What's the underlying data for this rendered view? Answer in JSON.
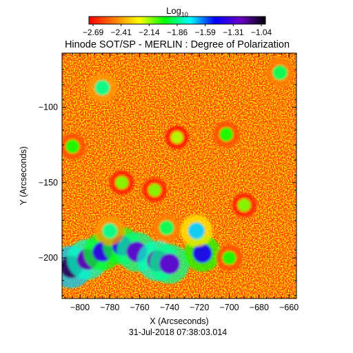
{
  "chart_data": {
    "type": "heatmap",
    "title": "Hinode SOT/SP - MERLIN : Degree of Polarization",
    "colorbar": {
      "label_base": "Log",
      "label_sub": "10",
      "ticks": [
        "-2.69",
        "-2.41",
        "-2.14",
        "-1.86",
        "-1.59",
        "-1.31",
        "-1.04"
      ],
      "range": [
        -2.69,
        -1.04
      ],
      "colormap": [
        "#ff0000",
        "#ff7a00",
        "#ffff00",
        "#00ff00",
        "#00ffff",
        "#0000ff",
        "#6a00c8",
        "#000000"
      ]
    },
    "xlabel": "X (Arcseconds)",
    "ylabel": "Y (Arcseconds)",
    "xlim": [
      -812,
      -655
    ],
    "ylim": [
      -227,
      -64
    ],
    "x_ticks": [
      -800,
      -780,
      -760,
      -740,
      -720,
      -700,
      -680,
      -660
    ],
    "y_ticks": [
      -100,
      -150,
      -200
    ],
    "x_tick_labels": [
      "-800",
      "-780",
      "-760",
      "-740",
      "-720",
      "-700",
      "-680",
      "-660"
    ],
    "y_tick_labels": [
      "-100",
      "-150",
      "-200"
    ],
    "timestamp": "31-Jul-2018 07:38:03.014",
    "features": [
      {
        "x": -806,
        "y": -206,
        "value": -1.15
      },
      {
        "x": -795,
        "y": -201,
        "value": -1.25
      },
      {
        "x": -785,
        "y": -196,
        "value": -1.4
      },
      {
        "x": -772,
        "y": -192,
        "value": -1.4
      },
      {
        "x": -762,
        "y": -196,
        "value": -1.3
      },
      {
        "x": -748,
        "y": -202,
        "value": -1.25
      },
      {
        "x": -740,
        "y": -204,
        "value": -1.3
      },
      {
        "x": -718,
        "y": -197,
        "value": -1.45
      },
      {
        "x": -722,
        "y": -182,
        "value": -1.7
      },
      {
        "x": -780,
        "y": -182,
        "value": -1.85
      },
      {
        "x": -742,
        "y": -180,
        "value": -1.9
      },
      {
        "x": -700,
        "y": -200,
        "value": -2.0
      },
      {
        "x": -785,
        "y": -87,
        "value": -1.85
      },
      {
        "x": -702,
        "y": -118,
        "value": -2.0
      },
      {
        "x": -666,
        "y": -77,
        "value": -1.9
      },
      {
        "x": -805,
        "y": -126,
        "value": -2.0
      },
      {
        "x": -750,
        "y": -155,
        "value": -2.1
      },
      {
        "x": -690,
        "y": -165,
        "value": -2.1
      },
      {
        "x": -735,
        "y": -120,
        "value": -2.15
      },
      {
        "x": -772,
        "y": -150,
        "value": -2.1
      }
    ]
  }
}
